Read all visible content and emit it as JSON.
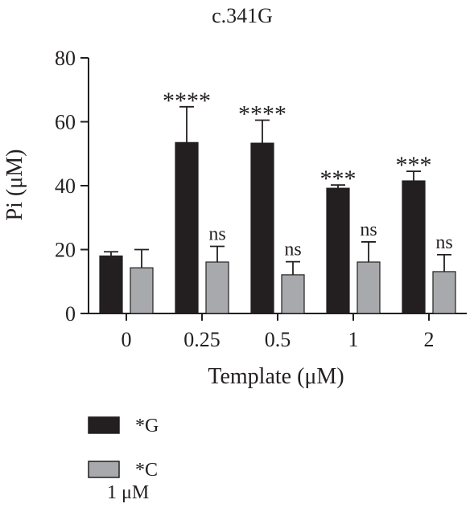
{
  "chart_data": {
    "type": "bar",
    "title": "c.341G",
    "xlabel": "Template (μM)",
    "ylabel": "Pi (μM)",
    "ylim": [
      0,
      80
    ],
    "yticks": [
      0,
      20,
      40,
      60,
      80
    ],
    "categories": [
      "0",
      "0.25",
      "0.5",
      "1",
      "2"
    ],
    "series": [
      {
        "name": "*G",
        "color": "#231f20",
        "values": [
          18,
          53.5,
          53.3,
          39.2,
          41.5
        ],
        "errors": [
          1.3,
          11.2,
          7.2,
          1.0,
          3.0
        ],
        "annotations": [
          "",
          "****",
          "****",
          "***",
          "***"
        ]
      },
      {
        "name": "*C",
        "color": "#a7a9ac",
        "values": [
          14.3,
          16.1,
          12.1,
          16.1,
          13.1
        ],
        "errors": [
          5.7,
          4.9,
          4.1,
          6.3,
          5.3
        ],
        "annotations": [
          "",
          "ns",
          "ns",
          "ns",
          "ns"
        ]
      }
    ],
    "legend": {
      "placement": "bottom-left",
      "note": "1 μM"
    }
  }
}
